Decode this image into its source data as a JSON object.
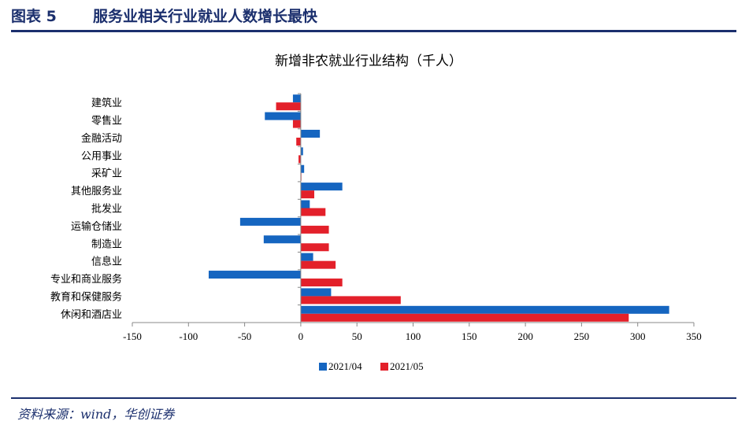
{
  "figure": {
    "number": "图表 5",
    "title": "服务业相关行业就业人数增长最快"
  },
  "source": {
    "label": "资料来源：",
    "text": "wind，华创证券"
  },
  "colors": {
    "series_a": "#1565c0",
    "series_b": "#e3202a",
    "rule": "#1b2f6d"
  },
  "chart_data": {
    "type": "bar",
    "orientation": "horizontal",
    "title": "新增非农就业行业结构（千人）",
    "xlabel": "",
    "ylabel": "",
    "xlim": [
      -150,
      350
    ],
    "xticks": [
      -150,
      -100,
      -50,
      0,
      50,
      100,
      150,
      200,
      250,
      300,
      350
    ],
    "categories": [
      "建筑业",
      "零售业",
      "金融活动",
      "公用事业",
      "采矿业",
      "其他服务业",
      "批发业",
      "运输仓储业",
      "制造业",
      "信息业",
      "专业和商业服务",
      "教育和保健服务",
      "休闲和酒店业"
    ],
    "series": [
      {
        "name": "2021/04",
        "values": [
          -7,
          -32,
          17,
          2,
          3,
          37,
          8,
          -54,
          -33,
          11,
          -82,
          27,
          328
        ]
      },
      {
        "name": "2021/05",
        "values": [
          -22,
          -7,
          -4,
          -2,
          0,
          12,
          22,
          25,
          25,
          31,
          37,
          89,
          292
        ]
      }
    ],
    "legend": "bottom-center",
    "grid": false
  }
}
